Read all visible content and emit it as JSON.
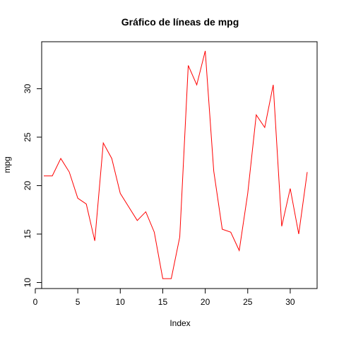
{
  "chart_data": {
    "type": "line",
    "title": "Gráfico de líneas de  mpg",
    "xlabel": "Index",
    "ylabel": "mpg",
    "xlim": [
      0,
      32
    ],
    "ylim": [
      10,
      34
    ],
    "x_ticks": [
      0,
      5,
      10,
      15,
      20,
      25,
      30
    ],
    "y_ticks": [
      10,
      15,
      20,
      25,
      30
    ],
    "x_tick_labels": [
      "0",
      "5",
      "10",
      "15",
      "20",
      "25",
      "30"
    ],
    "y_tick_labels": [
      "10",
      "15",
      "20",
      "25",
      "30"
    ],
    "grid": false,
    "legend": "none",
    "line_color": "#ff0000",
    "axis_color": "#000000",
    "series": [
      {
        "x": [
          1,
          2,
          3,
          4,
          5,
          6,
          7,
          8,
          9,
          10,
          11,
          12,
          13,
          14,
          15,
          16,
          17,
          18,
          19,
          20,
          21,
          22,
          23,
          24,
          25,
          26,
          27,
          28,
          29,
          30,
          31,
          32
        ],
        "values": [
          21.0,
          21.0,
          22.8,
          21.4,
          18.7,
          18.1,
          14.3,
          24.4,
          22.8,
          19.2,
          17.8,
          16.4,
          17.3,
          15.2,
          10.4,
          10.4,
          14.7,
          32.4,
          30.4,
          33.9,
          21.5,
          15.5,
          15.2,
          13.3,
          19.2,
          27.3,
          26.0,
          30.4,
          15.8,
          19.7,
          15.0,
          21.4
        ]
      }
    ]
  }
}
